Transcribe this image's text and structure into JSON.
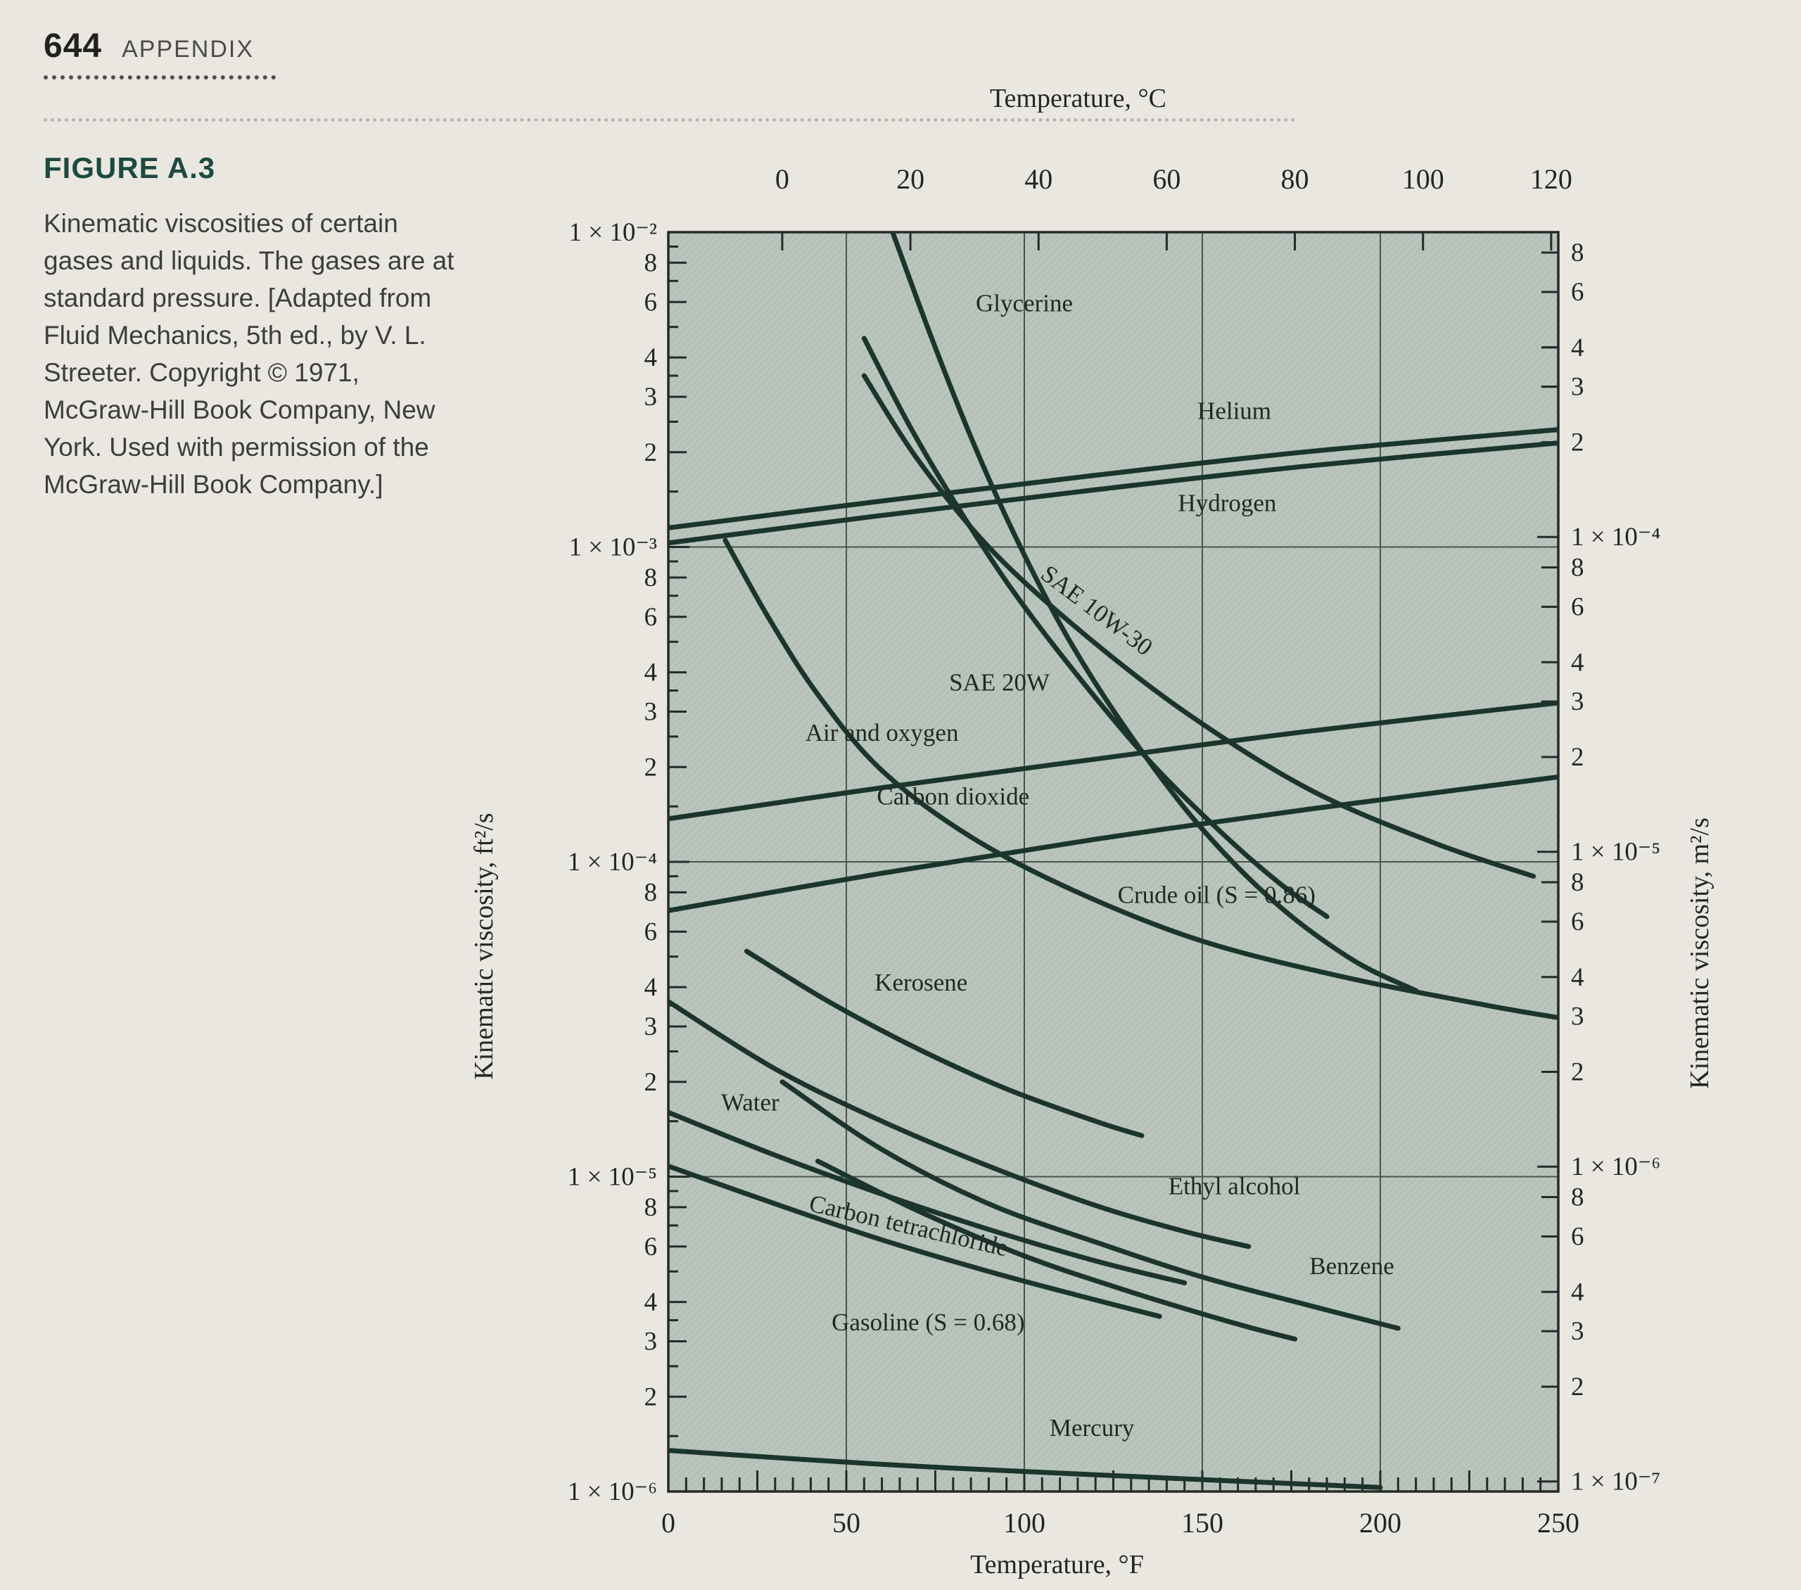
{
  "page": {
    "number": "644",
    "section": "APPENDIX"
  },
  "figure": {
    "title": "FIGURE A.3",
    "caption": "Kinematic viscosities of certain gases and liquids. The gases are at standard pressure. [Adapted from Fluid Mechanics, 5th ed., by V. L. Streeter. Copyright © 1971, McGraw-Hill Book Company, New York. Used with permission of the McGraw-Hill Book Company.]"
  },
  "colors": {
    "page_bg": "#eae7e1",
    "plot_bg": "#b4c0b8",
    "plot_hatch": "rgba(255,255,255,0.22)",
    "curve": "#1c352c",
    "grid": "#49544d",
    "frame": "#26292a",
    "chart_text": "#1f2823"
  },
  "chart_data": {
    "type": "line",
    "title": "",
    "x_axis_top": {
      "label": "Temperature, °C",
      "ticks": [
        0,
        20,
        40,
        60,
        80,
        100,
        120
      ]
    },
    "x_axis_bottom": {
      "label": "Temperature, °F",
      "ticks": [
        0,
        50,
        100,
        150,
        200,
        250
      ],
      "range": [
        0,
        250
      ],
      "minor_step": 5
    },
    "y_axis_left": {
      "label": "Kinematic viscosity, ft²/s",
      "scale": "log",
      "range": [
        1e-06,
        0.01
      ],
      "tick_labels": [
        [
          0.01,
          "1 × 10⁻²"
        ],
        [
          0.008,
          "8"
        ],
        [
          0.006,
          "6"
        ],
        [
          0.004,
          "4"
        ],
        [
          0.003,
          "3"
        ],
        [
          0.002,
          "2"
        ],
        [
          0.001,
          "1 × 10⁻³"
        ],
        [
          0.0008,
          "8"
        ],
        [
          0.0006,
          "6"
        ],
        [
          0.0004,
          "4"
        ],
        [
          0.0003,
          "3"
        ],
        [
          0.0002,
          "2"
        ],
        [
          0.0001,
          "1 × 10⁻⁴"
        ],
        [
          8e-05,
          "8"
        ],
        [
          6e-05,
          "6"
        ],
        [
          4e-05,
          "4"
        ],
        [
          3e-05,
          "3"
        ],
        [
          2e-05,
          "2"
        ],
        [
          1e-05,
          "1 × 10⁻⁵"
        ],
        [
          8e-06,
          "8"
        ],
        [
          6e-06,
          "6"
        ],
        [
          4e-06,
          "4"
        ],
        [
          3e-06,
          "3"
        ],
        [
          2e-06,
          "2"
        ],
        [
          1e-06,
          "1 × 10⁻⁶"
        ]
      ]
    },
    "y_axis_right": {
      "label": "Kinematic viscosity, m²/s",
      "scale": "log",
      "unit_per_ft2s": 0.092903,
      "tick_labels": [
        [
          0.0008,
          "8"
        ],
        [
          0.0006,
          "6"
        ],
        [
          0.0004,
          "4"
        ],
        [
          0.0003,
          "3"
        ],
        [
          0.0002,
          "2"
        ],
        [
          0.0001,
          "1 × 10⁻⁴"
        ],
        [
          8e-05,
          "8"
        ],
        [
          6e-05,
          "6"
        ],
        [
          4e-05,
          "4"
        ],
        [
          3e-05,
          "3"
        ],
        [
          2e-05,
          "2"
        ],
        [
          1e-05,
          "1 × 10⁻⁵"
        ],
        [
          8e-06,
          "8"
        ],
        [
          6e-06,
          "6"
        ],
        [
          4e-06,
          "4"
        ],
        [
          3e-06,
          "3"
        ],
        [
          2e-06,
          "2"
        ],
        [
          1e-06,
          "1 × 10⁻⁶"
        ],
        [
          8e-07,
          "8"
        ],
        [
          6e-07,
          "6"
        ],
        [
          4e-07,
          "4"
        ],
        [
          3e-07,
          "3"
        ],
        [
          2e-07,
          "2"
        ],
        [
          1e-07,
          "1 × 10⁻⁷"
        ]
      ]
    },
    "grid": {
      "vertical_F": [
        50,
        100,
        150,
        200
      ],
      "horizontal_ft2s": [
        0.001,
        0.0001,
        1e-05
      ]
    },
    "series": [
      {
        "name": "Glycerine",
        "points": [
          [
            63,
            0.01
          ],
          [
            74,
            0.0046
          ],
          [
            86,
            0.0021
          ],
          [
            98,
            0.00105
          ],
          [
            112,
            0.00052
          ],
          [
            128,
            0.00027
          ],
          [
            148,
            0.000135
          ],
          [
            170,
            7.5e-05
          ],
          [
            192,
            4.9e-05
          ],
          [
            210,
            3.9e-05
          ]
        ]
      },
      {
        "name": "SAE 20W",
        "points": [
          [
            55,
            0.0046
          ],
          [
            68,
            0.0024
          ],
          [
            82,
            0.0013
          ],
          [
            97,
            0.00072
          ],
          [
            115,
            0.00039
          ],
          [
            135,
            0.00021
          ],
          [
            155,
            0.000125
          ],
          [
            172,
            8.5e-05
          ],
          [
            185,
            6.7e-05
          ]
        ]
      },
      {
        "name": "SAE 10W-30",
        "points": [
          [
            55,
            0.0035
          ],
          [
            70,
            0.0019
          ],
          [
            90,
            0.001
          ],
          [
            115,
            0.00055
          ],
          [
            145,
            0.0003
          ],
          [
            180,
            0.00017
          ],
          [
            215,
            0.000115
          ],
          [
            243,
            9e-05
          ]
        ]
      },
      {
        "name": "Helium",
        "points": [
          [
            0,
            0.00115
          ],
          [
            60,
            0.0014
          ],
          [
            120,
            0.00169
          ],
          [
            180,
            0.00201
          ],
          [
            250,
            0.00236
          ]
        ]
      },
      {
        "name": "Hydrogen",
        "points": [
          [
            0,
            0.00103
          ],
          [
            60,
            0.00126
          ],
          [
            120,
            0.00152
          ],
          [
            180,
            0.00181
          ],
          [
            250,
            0.00214
          ]
        ]
      },
      {
        "name": "Air and oxygen",
        "points": [
          [
            0,
            0.000137
          ],
          [
            60,
            0.000172
          ],
          [
            120,
            0.000212
          ],
          [
            180,
            0.00026
          ],
          [
            250,
            0.00032
          ]
        ]
      },
      {
        "name": "Carbon dioxide",
        "points": [
          [
            0,
            7e-05
          ],
          [
            60,
            9.2e-05
          ],
          [
            120,
            0.000118
          ],
          [
            180,
            0.000147
          ],
          [
            250,
            0.000186
          ]
        ]
      },
      {
        "name": "Crude oil (S = 0.86)",
        "points": [
          [
            16,
            0.00105
          ],
          [
            28,
            0.0006
          ],
          [
            42,
            0.00034
          ],
          [
            60,
            0.000195
          ],
          [
            85,
            0.00012
          ],
          [
            115,
            8e-05
          ],
          [
            150,
            5.6e-05
          ],
          [
            190,
            4.3e-05
          ],
          [
            230,
            3.5e-05
          ],
          [
            250,
            3.2e-05
          ]
        ]
      },
      {
        "name": "Kerosene",
        "points": [
          [
            22,
            5.2e-05
          ],
          [
            45,
            3.6e-05
          ],
          [
            70,
            2.55e-05
          ],
          [
            95,
            1.9e-05
          ],
          [
            120,
            1.5e-05
          ],
          [
            133,
            1.35e-05
          ]
        ]
      },
      {
        "name": "Water",
        "points": [
          [
            32,
            2e-05
          ],
          [
            60,
            1.22e-05
          ],
          [
            90,
            8.2e-06
          ],
          [
            120,
            6.2e-06
          ],
          [
            150,
            4.8e-06
          ],
          [
            180,
            3.9e-06
          ],
          [
            205,
            3.3e-06
          ]
        ]
      },
      {
        "name": "Ethyl alcohol",
        "points": [
          [
            0,
            3.6e-05
          ],
          [
            30,
            2.2e-05
          ],
          [
            60,
            1.5e-05
          ],
          [
            90,
            1.08e-05
          ],
          [
            120,
            8.1e-06
          ],
          [
            145,
            6.7e-06
          ],
          [
            163,
            6e-06
          ]
        ]
      },
      {
        "name": "Carbon tetrachloride",
        "points": [
          [
            0,
            1.6e-05
          ],
          [
            30,
            1.17e-05
          ],
          [
            60,
            8.8e-06
          ],
          [
            90,
            6.8e-06
          ],
          [
            120,
            5.4e-06
          ],
          [
            145,
            4.6e-06
          ]
        ]
      },
      {
        "name": "Benzene",
        "points": [
          [
            42,
            1.12e-05
          ],
          [
            70,
            7.8e-06
          ],
          [
            100,
            5.6e-06
          ],
          [
            130,
            4.3e-06
          ],
          [
            160,
            3.4e-06
          ],
          [
            176,
            3.05e-06
          ]
        ]
      },
      {
        "name": "Gasoline (S = 0.68)",
        "points": [
          [
            0,
            1.08e-05
          ],
          [
            30,
            8.2e-06
          ],
          [
            60,
            6.3e-06
          ],
          [
            90,
            5e-06
          ],
          [
            115,
            4.2e-06
          ],
          [
            138,
            3.6e-06
          ]
        ]
      },
      {
        "name": "Mercury",
        "points": [
          [
            0,
            1.35e-06
          ],
          [
            60,
            1.22e-06
          ],
          [
            120,
            1.13e-06
          ],
          [
            200,
            1.03e-06
          ]
        ]
      }
    ],
    "curve_labels": [
      {
        "text": "Glycerine",
        "T": 100,
        "v": 0.0056,
        "rot": 0
      },
      {
        "text": "Helium",
        "T": 159,
        "v": 0.00255,
        "rot": 0
      },
      {
        "text": "Hydrogen",
        "T": 157,
        "v": 0.0013,
        "rot": 0
      },
      {
        "text": "SAE 10W-30",
        "T": 119,
        "v": 0.0006,
        "rot": 37
      },
      {
        "text": "SAE 20W",
        "T": 93,
        "v": 0.00035,
        "rot": 0
      },
      {
        "text": "Air and oxygen",
        "T": 60,
        "v": 0.000242,
        "rot": 0
      },
      {
        "text": "Carbon dioxide",
        "T": 80,
        "v": 0.000152,
        "rot": 0
      },
      {
        "text": "Crude oil (S = 0.86)",
        "T": 154,
        "v": 7.4e-05,
        "rot": 0
      },
      {
        "text": "Kerosene",
        "T": 71,
        "v": 3.9e-05,
        "rot": 0
      },
      {
        "text": "Water",
        "T": 23,
        "v": 1.62e-05,
        "rot": 0
      },
      {
        "text": "Ethyl alcohol",
        "T": 159,
        "v": 8.8e-06,
        "rot": 0
      },
      {
        "text": "Carbon tetrachloride",
        "T": 67,
        "v": 6.6e-06,
        "rot": 13
      },
      {
        "text": "Benzene",
        "T": 192,
        "v": 4.9e-06,
        "rot": 0
      },
      {
        "text": "Gasoline (S = 0.68)",
        "T": 73,
        "v": 3.25e-06,
        "rot": 0
      },
      {
        "text": "Mercury",
        "T": 119,
        "v": 1.5e-06,
        "rot": 0
      }
    ]
  }
}
